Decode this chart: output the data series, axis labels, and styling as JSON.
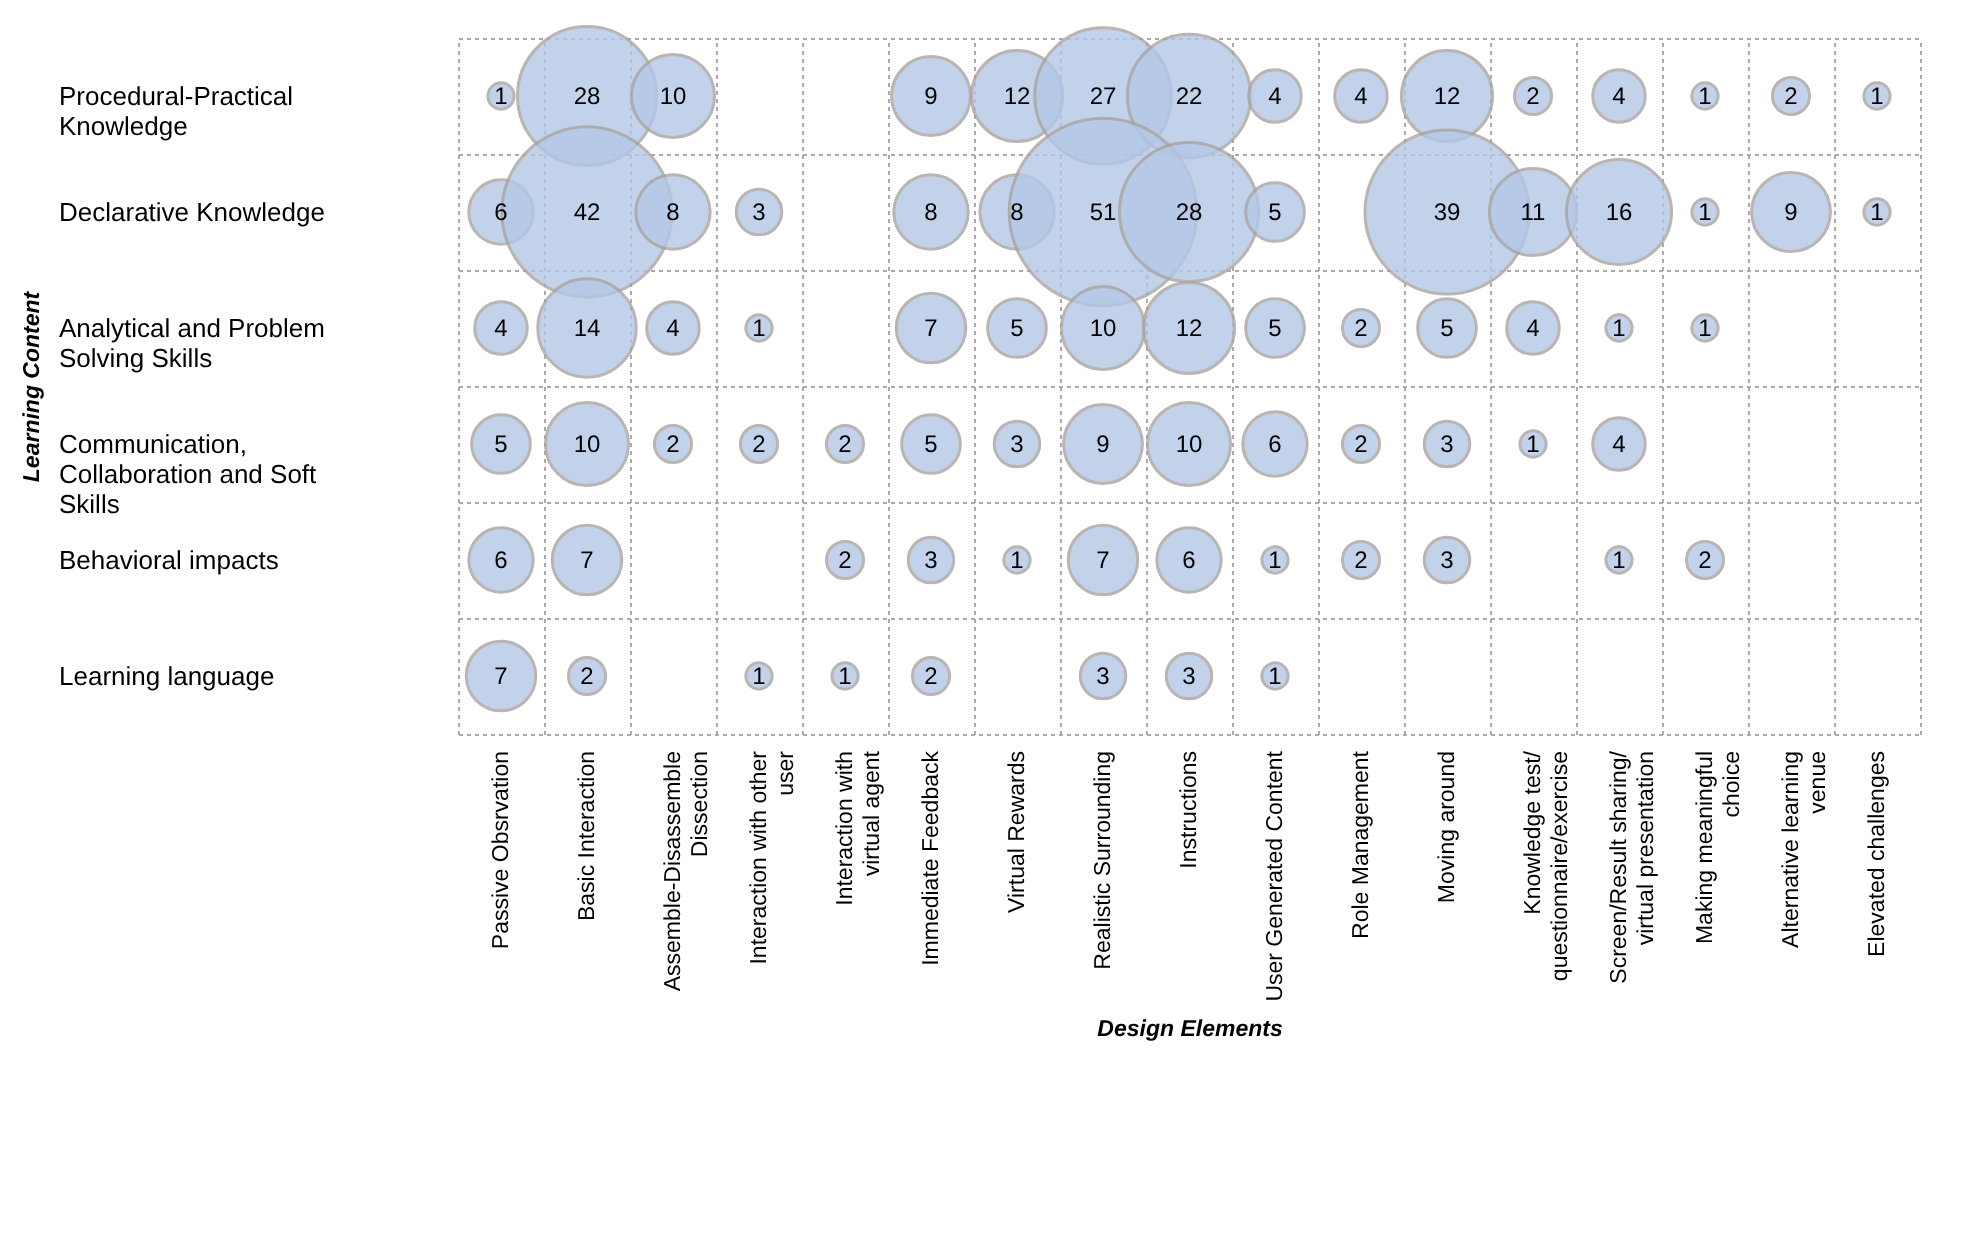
{
  "chart_data": {
    "type": "heatmap",
    "xlabel": "Design Elements",
    "ylabel": "Learning Content",
    "categories": [
      "Passive Obsrvation",
      "Basic Interaction",
      "Assemble-Disassemble Dissection",
      "Interaction with other user",
      "Interaction with virtual agent",
      "Immediate Feedback",
      "Virtual Rewards",
      "Realistic Surrounding",
      "Instructions",
      "User Generated Content",
      "Role Management",
      "Moving around",
      "Knowledge test/ questionnaire/exercise",
      "Screen/Result sharing/ virtual presentation",
      "Making meaningful choice",
      "Alternative learning venue",
      "Elevated challenges"
    ],
    "y_categories": [
      "Procedural-Practical Knowledge",
      "Declarative Knowledge",
      "Analytical and Problem Solving Skills",
      "Communication, Collaboration and Soft Skills",
      "Behavioral impacts",
      "Learning language"
    ],
    "cells": [
      [
        1,
        28,
        10,
        null,
        null,
        9,
        12,
        27,
        22,
        4,
        4,
        12,
        2,
        4,
        1,
        2,
        1
      ],
      [
        6,
        42,
        8,
        3,
        null,
        8,
        8,
        51,
        28,
        5,
        null,
        39,
        11,
        16,
        1,
        9,
        1
      ],
      [
        4,
        14,
        4,
        1,
        null,
        7,
        5,
        10,
        12,
        5,
        2,
        5,
        4,
        1,
        1,
        null,
        null
      ],
      [
        5,
        10,
        2,
        2,
        2,
        5,
        3,
        9,
        10,
        6,
        2,
        3,
        1,
        4,
        null,
        null,
        null
      ],
      [
        6,
        7,
        null,
        null,
        2,
        3,
        1,
        7,
        6,
        1,
        2,
        3,
        null,
        1,
        2,
        null,
        null
      ],
      [
        7,
        2,
        null,
        1,
        1,
        2,
        null,
        3,
        3,
        1,
        null,
        null,
        null,
        null,
        null,
        null,
        null
      ]
    ],
    "color": "#b4c7e7",
    "data_labels": true,
    "grid": true,
    "legend": false
  }
}
